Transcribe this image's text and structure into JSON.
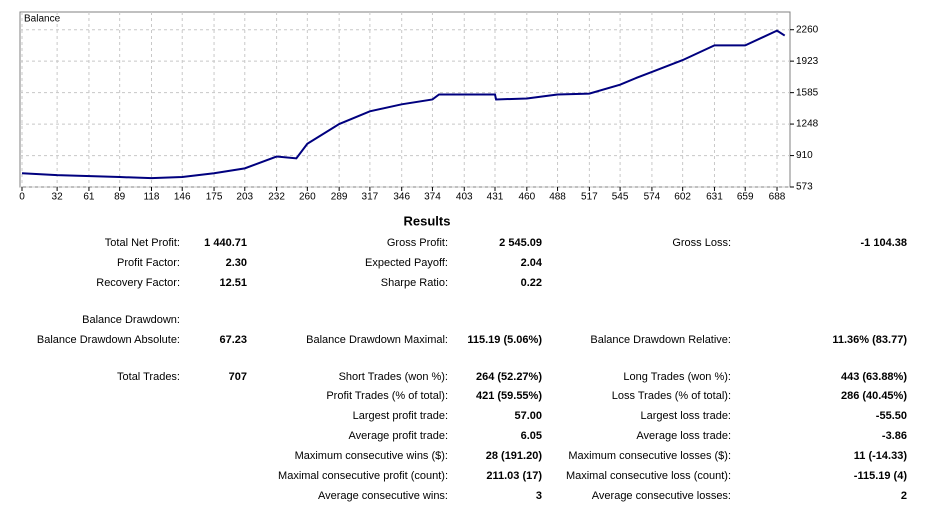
{
  "chart_data": {
    "type": "line",
    "x": [
      0,
      32,
      89,
      118,
      146,
      175,
      203,
      232,
      250,
      260,
      289,
      317,
      346,
      374,
      380,
      431,
      432,
      460,
      488,
      517,
      545,
      560,
      574,
      602,
      631,
      659,
      688,
      695
    ],
    "series": [
      {
        "name": "Balance",
        "color": "#00007f",
        "values": [
          720,
          700,
          680,
          668,
          680,
          720,
          773,
          900,
          880,
          1037,
          1248,
          1385,
          1460,
          1512,
          1565,
          1565,
          1512,
          1522,
          1565,
          1575,
          1670,
          1744,
          1807,
          1934,
          2092,
          2092,
          2250,
          2197
        ]
      }
    ],
    "xlim": [
      0,
      698
    ],
    "ylim": [
      573,
      2450
    ],
    "xticks": [
      0,
      32,
      61,
      89,
      118,
      146,
      175,
      203,
      232,
      260,
      289,
      317,
      346,
      374,
      403,
      431,
      460,
      488,
      517,
      545,
      574,
      602,
      631,
      659,
      688
    ],
    "yticks": [
      573,
      910,
      1248,
      1585,
      1923,
      2260
    ],
    "grid": true
  },
  "results": {
    "title": "Results",
    "rows": [
      [
        {
          "label": "Total Net Profit:",
          "value": "1 440.71"
        },
        {
          "label": "Gross Profit:",
          "value": "2 545.09"
        },
        {
          "label": "Gross Loss:",
          "value": "-1 104.38"
        }
      ],
      [
        {
          "label": "Profit Factor:",
          "value": "2.30"
        },
        {
          "label": "Expected Payoff:",
          "value": "2.04"
        },
        null
      ],
      [
        {
          "label": "Recovery Factor:",
          "value": "12.51"
        },
        {
          "label": "Sharpe Ratio:",
          "value": "0.22"
        },
        null
      ],
      [
        {
          "label": "Balance Drawdown:"
        },
        null,
        null
      ],
      [
        {
          "label": "Balance Drawdown Absolute:",
          "value": "67.23"
        },
        {
          "label": "Balance Drawdown Maximal:",
          "value": "115.19 (5.06%)"
        },
        {
          "label": "Balance Drawdown Relative:",
          "value": "11.36% (83.77)"
        }
      ],
      [
        {
          "label": "Total Trades:",
          "value": "707"
        },
        {
          "label": "Short Trades (won %):",
          "value": "264 (52.27%)"
        },
        {
          "label": "Long Trades (won %):",
          "value": "443 (63.88%)"
        }
      ],
      [
        null,
        {
          "label": "Profit Trades (% of total):",
          "value": "421 (59.55%)"
        },
        {
          "label": "Loss Trades (% of total):",
          "value": "286 (40.45%)"
        }
      ],
      [
        null,
        {
          "label": "Largest profit trade:",
          "value": "57.00"
        },
        {
          "label": "Largest loss trade:",
          "value": "-55.50"
        }
      ],
      [
        null,
        {
          "label": "Average profit trade:",
          "value": "6.05"
        },
        {
          "label": "Average loss trade:",
          "value": "-3.86"
        }
      ],
      [
        null,
        {
          "label": "Maximum consecutive wins ($):",
          "value": "28 (191.20)"
        },
        {
          "label": "Maximum consecutive losses ($):",
          "value": "11 (-14.33)"
        }
      ],
      [
        null,
        {
          "label": "Maximal consecutive profit (count):",
          "value": "211.03 (17)"
        },
        {
          "label": "Maximal consecutive loss (count):",
          "value": "-115.19 (4)"
        }
      ],
      [
        null,
        {
          "label": "Average consecutive wins:",
          "value": "3"
        },
        {
          "label": "Average consecutive losses:",
          "value": "2"
        }
      ]
    ]
  }
}
